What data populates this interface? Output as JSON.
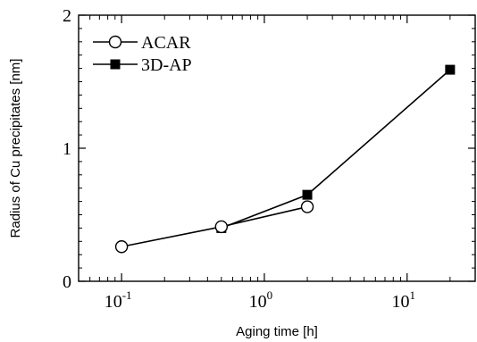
{
  "chart_data": {
    "type": "line",
    "xlabel": "Aging time [h]",
    "ylabel": "Radius of Cu precipitates [nm]",
    "x_scale": "log",
    "xlim": [
      0.05,
      30
    ],
    "ylim": [
      0,
      2
    ],
    "y_ticks": [
      {
        "value": 0,
        "label": "0"
      },
      {
        "value": 1,
        "label": "1"
      },
      {
        "value": 2,
        "label": "2"
      }
    ],
    "x_ticks": [
      {
        "value": 0.1,
        "base": "10",
        "exp": "-1"
      },
      {
        "value": 1,
        "base": "10",
        "exp": "0"
      },
      {
        "value": 10,
        "base": "10",
        "exp": "1"
      }
    ],
    "grid": false,
    "legend_position": "top-left",
    "series": [
      {
        "name": "ACAR",
        "marker": "open-circle",
        "color": "#000000",
        "x": [
          0.1,
          0.5,
          2
        ],
        "y": [
          0.26,
          0.41,
          0.56
        ]
      },
      {
        "name": "3D-AP",
        "marker": "filled-square",
        "color": "#000000",
        "x": [
          0.5,
          2,
          20
        ],
        "y": [
          0.4,
          0.65,
          1.59
        ]
      }
    ]
  }
}
